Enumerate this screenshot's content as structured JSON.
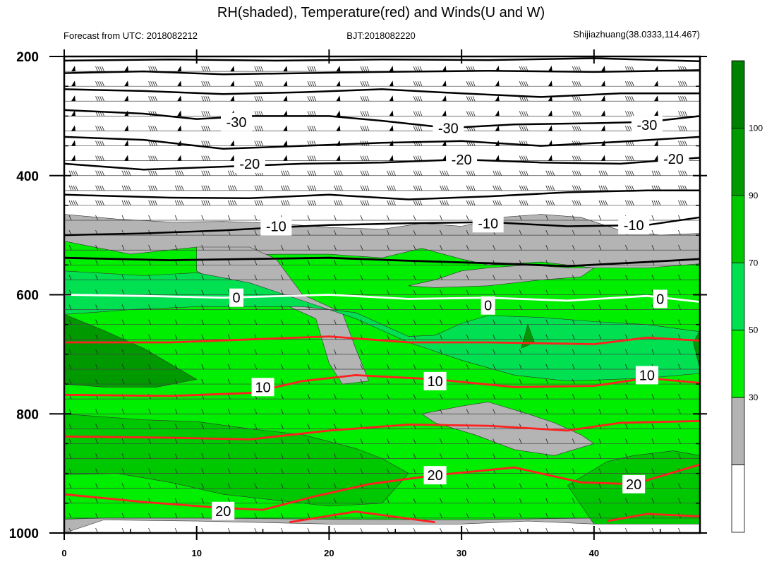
{
  "chart_data": {
    "type": "heatmap",
    "title": "RH(shaded), Temperature(red) and Winds(U and W)",
    "subtitle_left": "Forecast from UTC: 2018082212",
    "subtitle_center": "BJT:2018082220",
    "subtitle_right": "Shijiazhuang(38.0333,114.467)",
    "x_axis": {
      "range": [
        0,
        48
      ],
      "ticks": [
        0,
        10,
        20,
        30,
        40
      ]
    },
    "y_axis": {
      "range": [
        1000,
        200
      ],
      "ticks": [
        200,
        400,
        600,
        800,
        1000
      ],
      "unit": "hPa",
      "inverted": true
    },
    "grid": false,
    "colorbar": {
      "ticks": [
        30,
        50,
        70,
        90,
        100
      ],
      "colors": [
        "#ffffff",
        "#b4b4b4",
        "#00ee00",
        "#00e050",
        "#00c800",
        "#009a00",
        "#008000"
      ]
    },
    "temperature_contours": [
      {
        "level": -30,
        "label": "-30",
        "color": "#000000",
        "labels_at": [
          [
            13,
            310
          ],
          [
            29,
            320
          ],
          [
            44,
            315
          ]
        ]
      },
      {
        "level": -20,
        "label": "-20",
        "color": "#000000",
        "labels_at": [
          [
            14,
            380
          ],
          [
            30,
            373
          ],
          [
            46,
            372
          ]
        ]
      },
      {
        "level": -10,
        "label": "-10",
        "color": "#000000",
        "labels_at": [
          [
            16,
            485
          ],
          [
            32,
            480
          ],
          [
            43,
            483
          ]
        ]
      },
      {
        "level": 0,
        "label": "0",
        "color": "#ffffff",
        "labels_at": [
          [
            13,
            605
          ],
          [
            32,
            618
          ],
          [
            45,
            607
          ]
        ]
      },
      {
        "level": 10,
        "label": "10",
        "color": "#ff0000",
        "labels_at": [
          [
            15,
            755
          ],
          [
            28,
            745
          ],
          [
            44,
            735
          ]
        ]
      },
      {
        "level": 20,
        "label": "20",
        "color": "#ff0000",
        "labels_at": [
          [
            12,
            963
          ],
          [
            28,
            903
          ],
          [
            43,
            918
          ]
        ]
      }
    ],
    "wind_levels_hPa": [
      225,
      250,
      275,
      300,
      325,
      350,
      375,
      400,
      425,
      450,
      475,
      500,
      525,
      550,
      575,
      600,
      625,
      650,
      675,
      700,
      725,
      750,
      775,
      800,
      825,
      850,
      875,
      900,
      925,
      950,
      975,
      1000
    ]
  }
}
